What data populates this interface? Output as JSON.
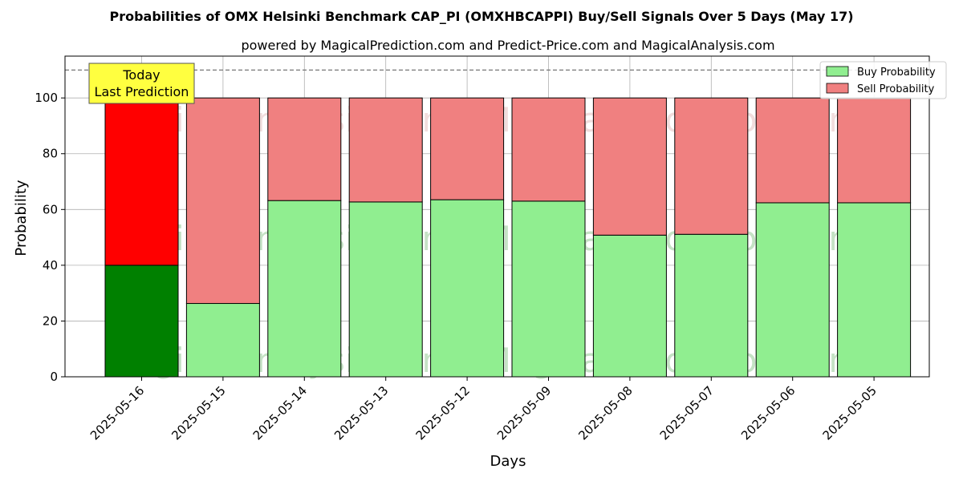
{
  "chart_data": {
    "type": "bar",
    "stacked": true,
    "title": "Probabilities of OMX Helsinki Benchmark CAP_PI (OMXHBCAPPI) Buy/Sell Signals Over 5 Days (May 17)",
    "subtitle": "powered by MagicalPrediction.com and Predict-Price.com and MagicalAnalysis.com",
    "xlabel": "Days",
    "ylabel": "Probability",
    "ylim": [
      0,
      115
    ],
    "yticks": [
      0,
      20,
      40,
      60,
      80,
      100
    ],
    "grid": true,
    "legend_position": "top-right",
    "categories": [
      "2025-05-16",
      "2025-05-15",
      "2025-05-14",
      "2025-05-13",
      "2025-05-12",
      "2025-05-09",
      "2025-05-08",
      "2025-05-07",
      "2025-05-06",
      "2025-05-05"
    ],
    "series": [
      {
        "name": "Buy Probability",
        "values": [
          40.0,
          26.3,
          63.2,
          62.7,
          63.5,
          63.0,
          50.8,
          51.1,
          62.4,
          62.4
        ],
        "color": "#90ee90",
        "highlight_color": "#008000"
      },
      {
        "name": "Sell Probability",
        "values": [
          60.0,
          73.7,
          36.8,
          37.3,
          36.5,
          37.0,
          49.2,
          48.9,
          37.6,
          37.6
        ],
        "color": "#f08080",
        "highlight_color": "#ff0000"
      }
    ],
    "highlight_index": 0,
    "reference_line": 110,
    "annotation": {
      "line1": "Today",
      "line2": "Last Prediction",
      "background": "#ffff40"
    },
    "watermarks": [
      "MagicalAnalysis.com",
      "MagicalPrediction.com"
    ]
  }
}
